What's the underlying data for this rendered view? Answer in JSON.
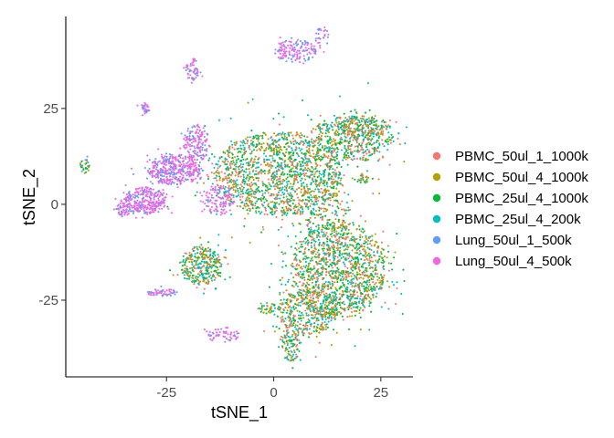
{
  "chart_data": {
    "type": "scatter",
    "title": "",
    "xlabel": "tSNE_1",
    "ylabel": "tSNE_2",
    "xlim": [
      -48.5,
      32.5
    ],
    "ylim": [
      -45,
      49
    ],
    "x_ticks": [
      -25,
      0,
      25
    ],
    "x_tick_labels": [
      "-25",
      "0",
      "25"
    ],
    "y_ticks": [
      -25,
      0,
      25
    ],
    "y_tick_labels": [
      "-25",
      "0",
      "25"
    ],
    "grid": false,
    "legend_position": "right",
    "series": [
      {
        "name": "PBMC_50ul_1_1000k",
        "color": "#F8766D"
      },
      {
        "name": "PBMC_50ul_4_1000k",
        "color": "#B79F00"
      },
      {
        "name": "PBMC_25ul_4_1000k",
        "color": "#00BA38"
      },
      {
        "name": "PBMC_25ul_4_200k",
        "color": "#00BFC4"
      },
      {
        "name": "Lung_50ul_1_500k",
        "color": "#619CFF"
      },
      {
        "name": "Lung_50ul_4_500k",
        "color": "#F564E3"
      }
    ],
    "clusters": [
      {
        "cx": 1,
        "cy": 8,
        "rx": 15,
        "ry": 11,
        "n": 1500,
        "mix": [
          1,
          1,
          1,
          1,
          0,
          0
        ]
      },
      {
        "cx": 18,
        "cy": 17,
        "rx": 10,
        "ry": 6,
        "n": 450,
        "mix": [
          1,
          1,
          1,
          1,
          0,
          0
        ]
      },
      {
        "cx": 21,
        "cy": 20,
        "rx": 6,
        "ry": 3,
        "n": 160,
        "mix": [
          1,
          1,
          1,
          1,
          0,
          0
        ]
      },
      {
        "cx": 12,
        "cy": -2,
        "rx": 6,
        "ry": 5,
        "n": 120,
        "mix": [
          1,
          1,
          1,
          1,
          0,
          0
        ]
      },
      {
        "cx": 15,
        "cy": -17,
        "rx": 11,
        "ry": 13,
        "n": 1400,
        "mix": [
          1,
          1,
          1,
          1,
          0,
          0
        ]
      },
      {
        "cx": 8,
        "cy": -28,
        "rx": 7,
        "ry": 6,
        "n": 350,
        "mix": [
          1,
          1,
          1,
          1,
          0,
          0
        ]
      },
      {
        "cx": 4,
        "cy": -36,
        "rx": 2.5,
        "ry": 5,
        "n": 120,
        "mix": [
          1,
          1,
          1,
          1,
          0,
          0
        ]
      },
      {
        "cx": -1,
        "cy": -27,
        "rx": 3,
        "ry": 1.5,
        "n": 40,
        "mix": [
          1,
          1,
          1,
          1,
          0,
          0
        ]
      },
      {
        "cx": -17,
        "cy": -16,
        "rx": 5,
        "ry": 5,
        "n": 320,
        "mix": [
          1,
          1,
          1,
          1,
          0,
          0
        ]
      },
      {
        "cx": 21,
        "cy": 7,
        "rx": 1.5,
        "ry": 1.5,
        "n": 25,
        "mix": [
          1,
          1,
          1,
          1,
          0,
          0
        ]
      },
      {
        "cx": -23,
        "cy": 9,
        "rx": 6,
        "ry": 4,
        "n": 400,
        "mix": [
          0,
          0,
          0,
          0,
          1,
          2
        ]
      },
      {
        "cx": -30,
        "cy": 1,
        "rx": 5,
        "ry": 3.5,
        "n": 300,
        "mix": [
          0,
          0,
          0,
          0,
          1,
          2
        ]
      },
      {
        "cx": -18,
        "cy": 16,
        "rx": 3,
        "ry": 5,
        "n": 160,
        "mix": [
          0,
          0,
          0,
          0,
          1,
          2
        ]
      },
      {
        "cx": -35,
        "cy": -1,
        "rx": 2,
        "ry": 2,
        "n": 60,
        "mix": [
          0,
          0,
          0,
          0,
          1,
          2
        ]
      },
      {
        "cx": -13,
        "cy": 1,
        "rx": 4,
        "ry": 4,
        "n": 120,
        "mix": [
          0,
          0,
          0,
          0,
          1,
          2
        ]
      },
      {
        "cx": 5,
        "cy": 40,
        "rx": 5,
        "ry": 3,
        "n": 150,
        "mix": [
          0,
          0,
          0,
          0,
          1,
          2
        ]
      },
      {
        "cx": -19,
        "cy": 35,
        "rx": 1.5,
        "ry": 3,
        "n": 60,
        "mix": [
          0,
          0,
          0,
          0,
          1,
          2
        ]
      },
      {
        "cx": -30,
        "cy": 25,
        "rx": 1,
        "ry": 1.5,
        "n": 30,
        "mix": [
          0,
          0,
          0,
          0,
          1,
          2
        ]
      },
      {
        "cx": -44,
        "cy": 10,
        "rx": 1,
        "ry": 2,
        "n": 30,
        "mix": [
          0,
          1,
          1,
          0,
          1,
          0
        ]
      },
      {
        "cx": -26,
        "cy": -23,
        "rx": 3.5,
        "ry": 1,
        "n": 60,
        "mix": [
          0,
          0,
          0,
          0,
          1,
          2
        ]
      },
      {
        "cx": -12,
        "cy": -34,
        "rx": 4,
        "ry": 2,
        "n": 60,
        "mix": [
          0,
          0,
          0,
          0,
          1,
          2
        ]
      },
      {
        "cx": 11,
        "cy": 44,
        "rx": 2,
        "ry": 2,
        "n": 25,
        "mix": [
          0,
          0,
          0,
          0,
          1,
          2
        ]
      }
    ]
  }
}
